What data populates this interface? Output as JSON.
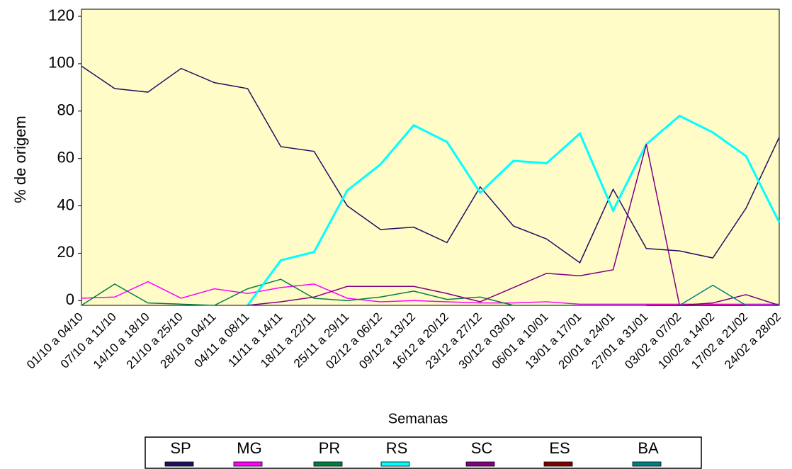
{
  "chart_data": {
    "type": "line",
    "y_label": "% de origem",
    "x_label": "Semanas",
    "categories": [
      "01/10 a 04/10",
      "07/10 a 11/10",
      "14/10 a 18/10",
      "21/10 a 25/10",
      "28/10 a 04/11",
      "04/11 a 08/11",
      "11/11 a 14/11",
      "18/11 a 22/11",
      "25/11 a 29/11",
      "02/12 a 06/12",
      "09/12 a 13/12",
      "16/12 a 20/12",
      "23/12 a 27/12",
      "30/12 a 03/01",
      "06/01 a 10/01",
      "13/01 a 17/01",
      "20/01 a 24/01",
      "27/01 a 31/01",
      "03/02 a 07/02",
      "10/02 a 14/02",
      "17/02 a 21/02",
      "24/02 a 28/02"
    ],
    "category_label_colors": [
      "#000000",
      "#c0392b",
      "#c0392b",
      "#c0392b",
      "#c0392b",
      "#c0392b",
      "#c0392b",
      "#c0392b",
      "#c0392b",
      "#c0392b",
      "#c0392b",
      "#c0392b",
      "#c0392b",
      "#c0392b",
      "#c0392b",
      "#c0392b",
      "#c0392b",
      "#c0392b",
      "#000000",
      "#000000",
      "#000000",
      "#000000"
    ],
    "series": [
      {
        "name": "SP",
        "color": "#1c1060",
        "width": 1.5,
        "values": [
          99,
          89.5,
          88,
          98,
          92,
          89.5,
          65,
          63,
          40,
          30,
          31,
          24.5,
          48,
          31.5,
          26,
          16,
          47,
          22,
          21,
          18,
          39,
          69
        ]
      },
      {
        "name": "MG",
        "color": "#ff00ff",
        "width": 1.5,
        "values": [
          1,
          1.5,
          8,
          1,
          5,
          3,
          5.5,
          7,
          1,
          -0.5,
          0,
          -0.5,
          -1,
          -1,
          -0.5,
          -1.5,
          -1.5,
          -1.5,
          -1.5,
          -1.5,
          -1.5,
          -1.5
        ]
      },
      {
        "name": "PR",
        "color": "#008040",
        "width": 1.5,
        "values": [
          -2,
          7,
          -1,
          -1.5,
          -2,
          5,
          9,
          1,
          0,
          1.5,
          4,
          0.5,
          1.5,
          -2,
          -2,
          -2,
          -2,
          -2,
          -2,
          -2,
          -2,
          -2
        ]
      },
      {
        "name": "RS",
        "color": "#00ffff",
        "width": 3,
        "values": [
          null,
          null,
          null,
          null,
          null,
          -2,
          17,
          20.5,
          46.5,
          57.5,
          74,
          67,
          45.5,
          59,
          58,
          70.5,
          38,
          66,
          78,
          71,
          61,
          33
        ]
      },
      {
        "name": "SC",
        "color": "#800080",
        "width": 1.5,
        "values": [
          null,
          null,
          null,
          null,
          null,
          -2,
          -0.5,
          1.5,
          6,
          6,
          6,
          3,
          -0.5,
          5.5,
          11.5,
          10.5,
          13,
          66,
          -2,
          -1,
          2.5,
          -2
        ]
      },
      {
        "name": "ES",
        "color": "#800000",
        "width": 1.5,
        "values": [
          null,
          null,
          null,
          null,
          null,
          null,
          null,
          null,
          null,
          null,
          null,
          null,
          null,
          null,
          null,
          null,
          null,
          -2,
          -2,
          -2,
          -2,
          -2
        ]
      },
      {
        "name": "BA",
        "color": "#008080",
        "width": 1.5,
        "values": [
          null,
          null,
          null,
          null,
          null,
          null,
          null,
          null,
          null,
          null,
          null,
          null,
          null,
          null,
          null,
          null,
          null,
          null,
          -2,
          6.5,
          -2,
          -2
        ]
      }
    ],
    "ylim": [
      -2,
      123
    ],
    "yticks": [
      0,
      20,
      40,
      60,
      80,
      100,
      120
    ],
    "plot_background": "#fffcc8"
  }
}
